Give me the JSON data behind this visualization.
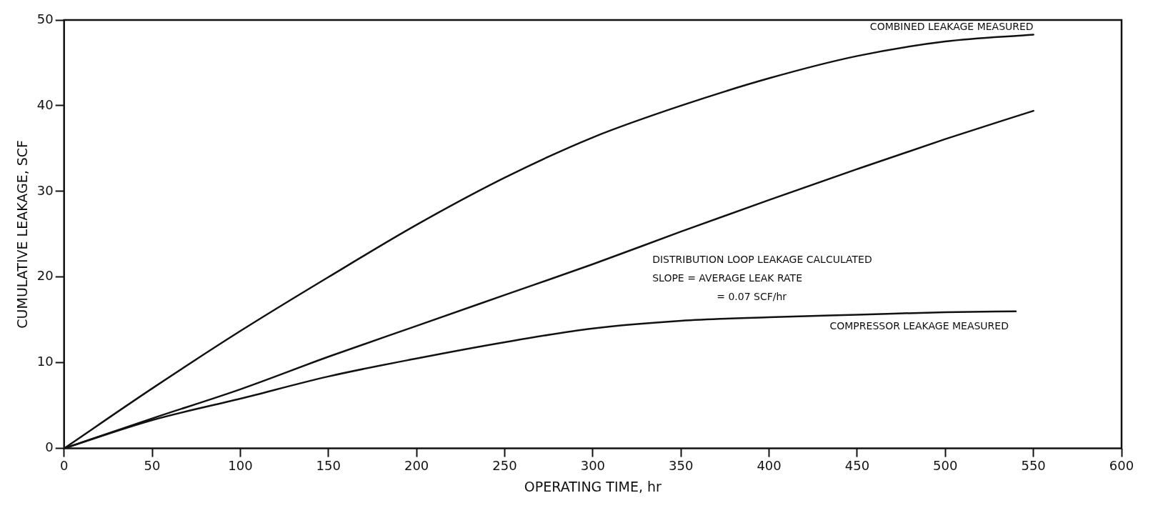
{
  "chart_data": {
    "type": "line",
    "xlabel": "OPERATING TIME, hr",
    "ylabel": "CUMULATIVE LEAKAGE, SCF",
    "x": [
      0,
      50,
      100,
      150,
      200,
      250,
      300,
      350,
      400,
      450,
      500,
      550
    ],
    "series": [
      {
        "name": "COMBINED LEAKAGE MEASURED",
        "color": "#111111",
        "values": [
          0,
          7,
          13.7,
          20,
          26.1,
          31.6,
          36.3,
          40,
          43.2,
          45.8,
          47.5,
          48.3
        ]
      },
      {
        "name": "DISTRIBUTION LOOP LEAKAGE CALCULATED",
        "color": "#111111",
        "values": [
          0,
          3.5,
          6.9,
          10.7,
          14.3,
          17.9,
          21.5,
          25.3,
          29,
          32.6,
          36.1,
          39.4
        ]
      },
      {
        "name": "COMPRESSOR LEAKAGE MEASURED",
        "color": "#111111",
        "x": [
          0,
          50,
          100,
          150,
          200,
          250,
          300,
          350,
          400,
          450,
          500,
          540
        ],
        "values": [
          0,
          3.3,
          5.8,
          8.4,
          10.5,
          12.4,
          14,
          14.9,
          15.3,
          15.6,
          15.9,
          16
        ]
      }
    ],
    "annotations": [
      "SLOPE = AVERAGE LEAK RATE",
      "= 0.07 SCF/hr"
    ],
    "xlim": [
      0,
      600
    ],
    "xticks": [
      0,
      50,
      100,
      150,
      200,
      250,
      300,
      350,
      400,
      450,
      500,
      550,
      600
    ],
    "ylim": [
      0,
      50
    ],
    "yticks": [
      0,
      10,
      20,
      30,
      40,
      50
    ],
    "grid": false,
    "legend": false,
    "marker": "none",
    "line_style": "solid"
  }
}
